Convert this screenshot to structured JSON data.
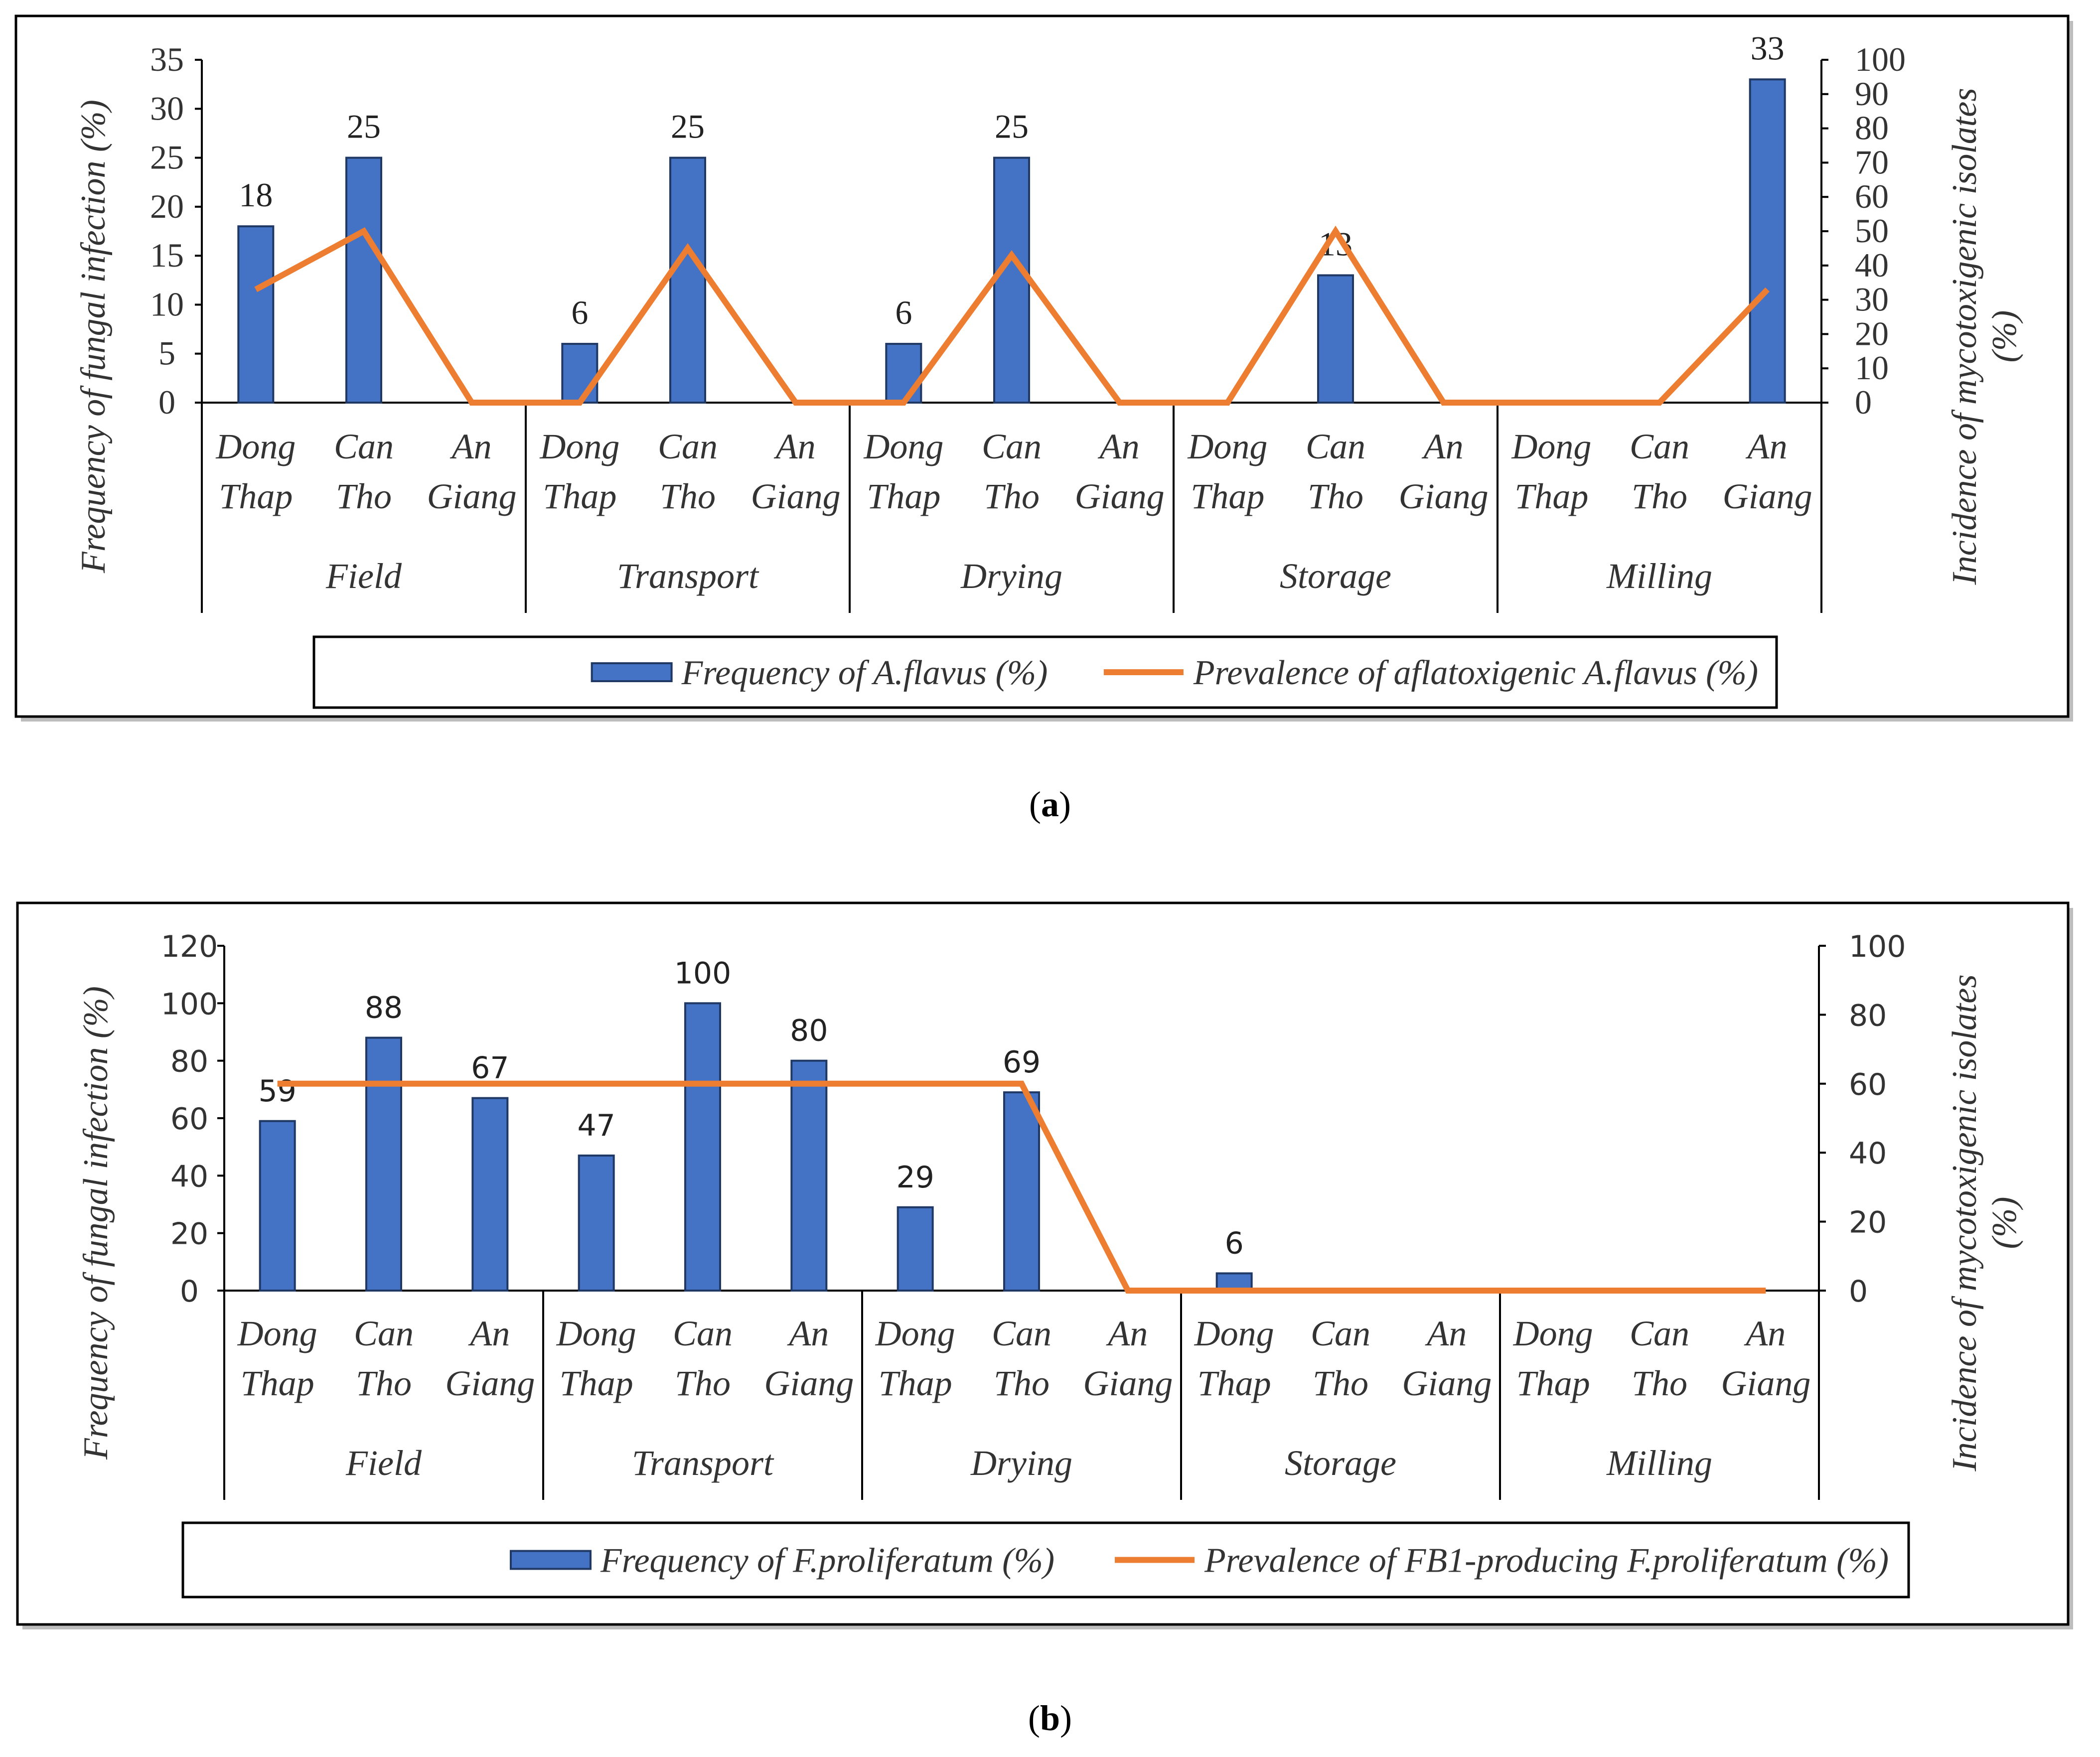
{
  "chart_data": [
    {
      "type": "bar",
      "panel_label": "a",
      "groups": [
        "Field",
        "Transport",
        "Drying",
        "Storage",
        "Milling"
      ],
      "subcategories": [
        [
          "Dong",
          "Thap"
        ],
        [
          "Can",
          "Tho"
        ],
        [
          "An",
          "Giang"
        ]
      ],
      "ylabel": "Frequency of fungal infection (%)",
      "y2label": [
        "Incidence of mycotoxigenic isolates",
        "(%)"
      ],
      "ylim": [
        0,
        35
      ],
      "yticks": [
        0,
        5,
        10,
        15,
        20,
        25,
        30,
        35
      ],
      "y2lim": [
        0,
        100
      ],
      "y2ticks": [
        0,
        10,
        20,
        30,
        40,
        50,
        60,
        70,
        80,
        90,
        100
      ],
      "series": [
        {
          "name": "Frequency of A.flavus (%)",
          "kind": "bar",
          "axis": "left",
          "color": "#4472C4",
          "values": [
            18,
            25,
            0,
            6,
            25,
            0,
            6,
            25,
            0,
            0,
            13,
            0,
            0,
            0,
            33
          ],
          "labels": [
            "18",
            "25",
            "",
            "6",
            "25",
            "",
            "6",
            "25",
            "",
            "",
            "13",
            "",
            "",
            "",
            "33"
          ]
        },
        {
          "name": "Prevalence of aflatoxigenic A.flavus (%)",
          "kind": "line",
          "axis": "right",
          "color": "#ED7D31",
          "values": [
            33,
            50,
            0,
            0,
            45,
            0,
            0,
            43,
            0,
            0,
            50,
            0,
            0,
            0,
            33
          ]
        }
      ],
      "legend_position": "bottom"
    },
    {
      "type": "bar",
      "panel_label": "b",
      "groups": [
        "Field",
        "Transport",
        "Drying",
        "Storage",
        "Milling"
      ],
      "subcategories": [
        [
          "Dong",
          "Thap"
        ],
        [
          "Can",
          "Tho"
        ],
        [
          "An",
          "Giang"
        ]
      ],
      "ylabel": "Frequency of fungal infection (%)",
      "y2label": [
        "Incidence of mycotoxigenic isolates",
        "(%)"
      ],
      "ylim": [
        0,
        120
      ],
      "yticks": [
        0,
        20,
        40,
        60,
        80,
        100,
        120
      ],
      "y2lim": [
        0,
        100
      ],
      "y2ticks": [
        0,
        20,
        40,
        60,
        80,
        100
      ],
      "series": [
        {
          "name": "Frequency of F.proliferatum (%)",
          "kind": "bar",
          "axis": "left",
          "color": "#4472C4",
          "values": [
            59,
            88,
            67,
            47,
            100,
            80,
            29,
            69,
            0,
            6,
            0,
            0,
            0,
            0,
            0
          ],
          "labels": [
            "59",
            "88",
            "67",
            "47",
            "100",
            "80",
            "29",
            "69",
            "",
            "6",
            "",
            "",
            "",
            "",
            ""
          ]
        },
        {
          "name": "Prevalence of FB1-producing F.proliferatum (%)",
          "kind": "line",
          "axis": "right",
          "color": "#ED7D31",
          "values": [
            60,
            60,
            60,
            60,
            60,
            60,
            60,
            60,
            0,
            0,
            0,
            0,
            0,
            0,
            0
          ]
        }
      ],
      "legend_position": "bottom"
    }
  ]
}
